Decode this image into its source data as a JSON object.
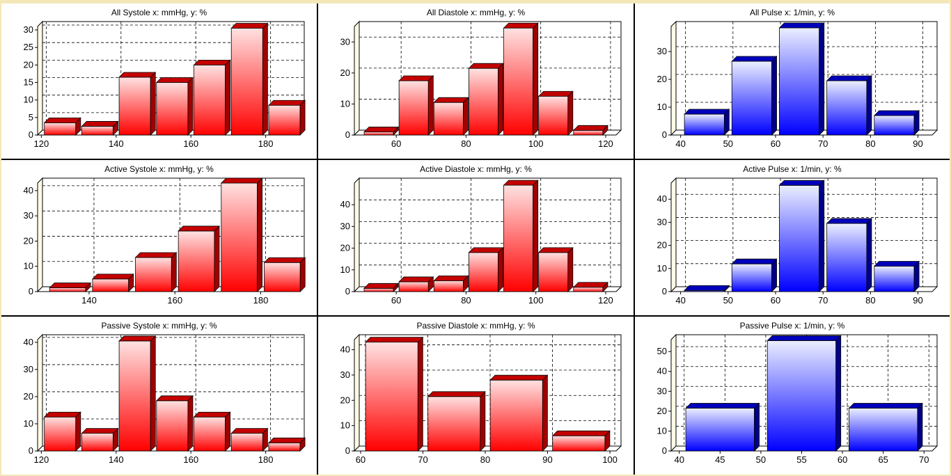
{
  "colors": {
    "red_top": "#ffe2e2",
    "red_bottom": "#ff0000",
    "red_side": "#a00000",
    "red_top_face": "#c40000",
    "blue_top": "#ebefff",
    "blue_bottom": "#0000ff",
    "blue_side": "#000088",
    "blue_top_face": "#0000bb",
    "wall": "#fffbe6",
    "grid": "#000000"
  },
  "chart_data": [
    {
      "type": "bar",
      "title": "All Systole  x: mmHg,  y: %",
      "color": "red",
      "x": [
        125,
        135,
        145,
        155,
        165,
        175,
        185
      ],
      "values": [
        3.5,
        2.5,
        16.5,
        15,
        20,
        30.5,
        8.5
      ],
      "xlim": [
        119,
        189
      ],
      "ylim": [
        0,
        31
      ],
      "xticks": [
        120,
        140,
        160,
        180
      ],
      "yticks": [
        0,
        5,
        10,
        15,
        20,
        25,
        30
      ],
      "bin": 10
    },
    {
      "type": "bar",
      "title": "All Diastole  x: mmHg,  y: %",
      "color": "red",
      "x": [
        55,
        65,
        75,
        85,
        95,
        105,
        115
      ],
      "values": [
        1,
        17.5,
        10.5,
        21.5,
        34.5,
        12.5,
        1.5
      ],
      "xlim": [
        48,
        123
      ],
      "ylim": [
        0,
        35
      ],
      "xticks": [
        60,
        80,
        100,
        120
      ],
      "yticks": [
        0,
        10,
        20,
        30
      ],
      "bin": 10
    },
    {
      "type": "bar",
      "title": "All Pulse  x: 1/min,  y: %",
      "color": "blue",
      "x": [
        45,
        55,
        65,
        75,
        85
      ],
      "values": [
        7.5,
        26.5,
        38.5,
        19.5,
        7
      ],
      "xlim": [
        38,
        93
      ],
      "ylim": [
        0,
        39
      ],
      "xticks": [
        40,
        50,
        60,
        70,
        80,
        90
      ],
      "yticks": [
        0,
        10,
        20,
        30
      ],
      "bin": 10
    },
    {
      "type": "bar",
      "title": "Active Systole  x: mmHg,  y: %",
      "color": "red",
      "x": [
        135,
        145,
        155,
        165,
        175,
        185
      ],
      "values": [
        1.5,
        5,
        13.5,
        24,
        43,
        11.5
      ],
      "xlim": [
        128,
        189
      ],
      "ylim": [
        0,
        43
      ],
      "xticks": [
        140,
        160,
        180
      ],
      "yticks": [
        0,
        10,
        20,
        30,
        40
      ],
      "bin": 10
    },
    {
      "type": "bar",
      "title": "Active Diastole  x: mmHg,  y: %",
      "color": "red",
      "x": [
        55,
        65,
        75,
        85,
        95,
        105,
        115
      ],
      "values": [
        1.5,
        4.5,
        5,
        18,
        49,
        18,
        2
      ],
      "xlim": [
        48,
        123
      ],
      "ylim": [
        0,
        50
      ],
      "xticks": [
        60,
        80,
        100,
        120
      ],
      "yticks": [
        0,
        10,
        20,
        30,
        40
      ],
      "bin": 10
    },
    {
      "type": "bar",
      "title": "Active Pulse  x: 1/min,  y: %",
      "color": "blue",
      "x": [
        45,
        55,
        65,
        75,
        85
      ],
      "values": [
        0.5,
        12,
        46,
        29.5,
        11
      ],
      "xlim": [
        38,
        93
      ],
      "ylim": [
        0,
        47
      ],
      "xticks": [
        40,
        50,
        60,
        70,
        80,
        90
      ],
      "yticks": [
        0,
        10,
        20,
        30,
        40
      ],
      "bin": 10
    },
    {
      "type": "bar",
      "title": "Passive Systole  x: mmHg,  y: %",
      "color": "red",
      "x": [
        125,
        135,
        145,
        155,
        165,
        175,
        185
      ],
      "values": [
        12.5,
        6.5,
        40.5,
        18.5,
        12.5,
        6.5,
        3
      ],
      "xlim": [
        119,
        189
      ],
      "ylim": [
        0,
        41
      ],
      "xticks": [
        120,
        140,
        160,
        180
      ],
      "yticks": [
        0,
        10,
        20,
        30,
        40
      ],
      "bin": 10
    },
    {
      "type": "bar",
      "title": "Passive Diastole  x: mmHg,  y: %",
      "color": "red",
      "x": [
        65,
        75,
        85,
        95
      ],
      "values": [
        43,
        21.5,
        28,
        6
      ],
      "xlim": [
        59,
        101
      ],
      "ylim": [
        0,
        44
      ],
      "xticks": [
        60,
        70,
        80,
        90,
        100
      ],
      "yticks": [
        0,
        10,
        20,
        30,
        40
      ],
      "bin": 10
    },
    {
      "type": "bar",
      "title": "Passive Pulse  x: 1/min,  y: %",
      "color": "blue",
      "x": [
        45,
        55,
        65
      ],
      "values": [
        21.5,
        55.5,
        21.5
      ],
      "xlim": [
        39,
        71
      ],
      "ylim": [
        0,
        56
      ],
      "xticks": [
        40,
        45,
        50,
        55,
        60,
        65,
        70
      ],
      "yticks": [
        0,
        10,
        20,
        30,
        40,
        50
      ],
      "bin": 10
    }
  ]
}
